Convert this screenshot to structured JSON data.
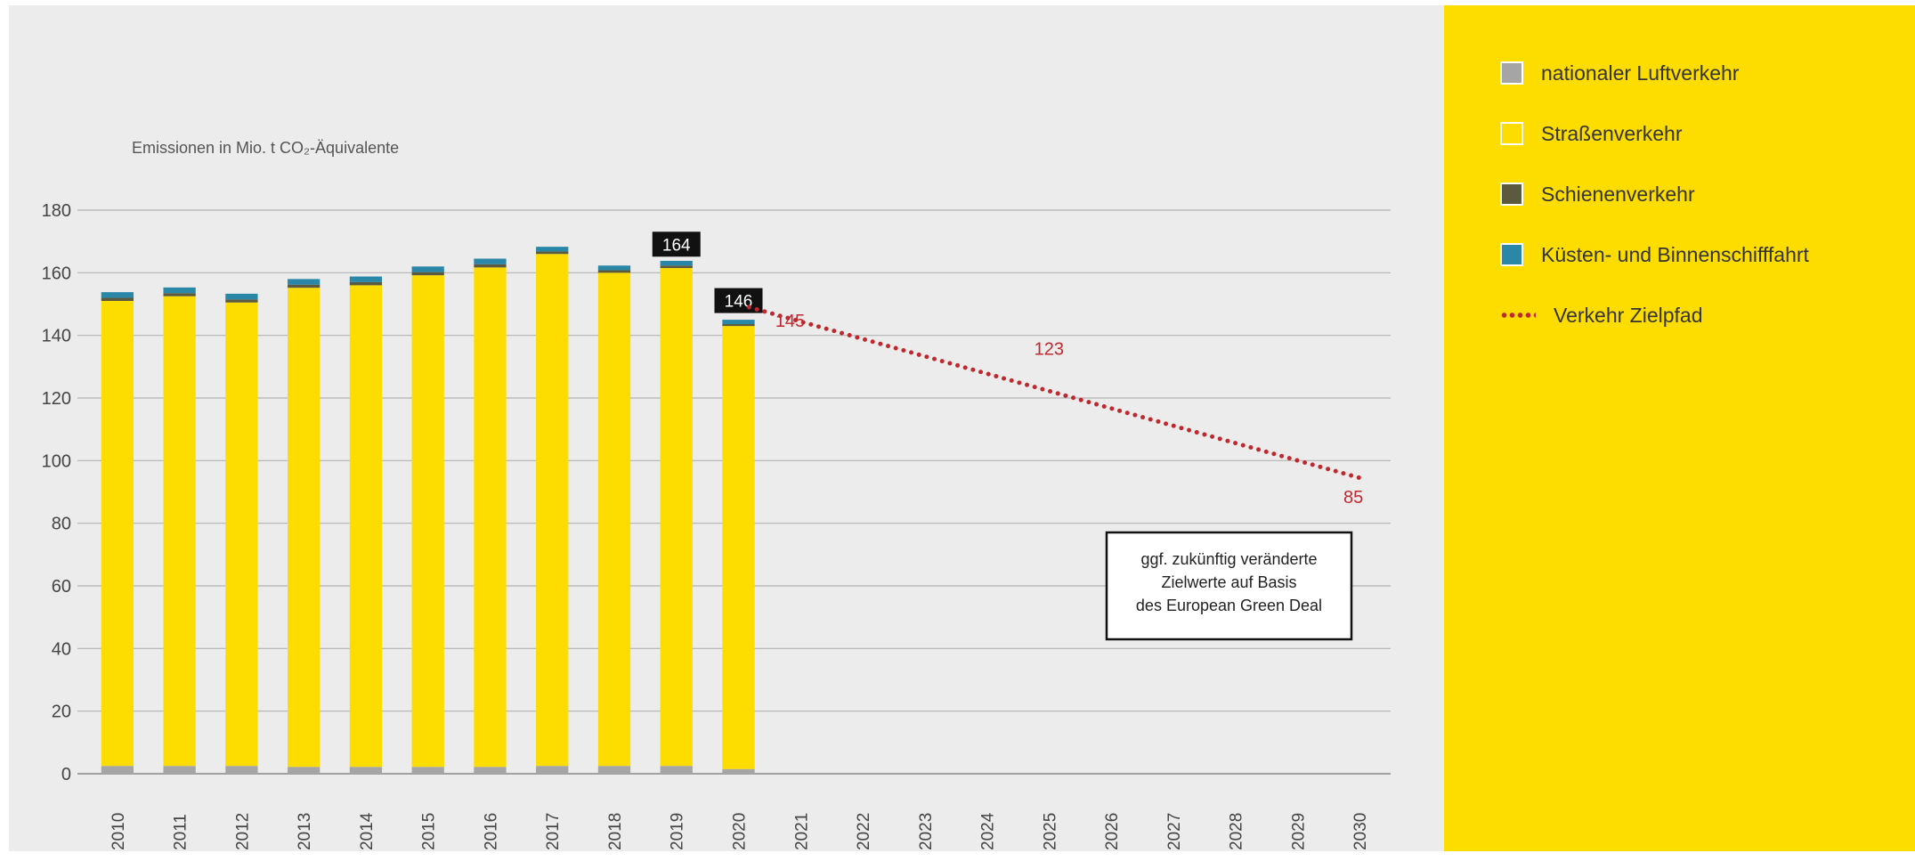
{
  "chart_data": {
    "type": "bar",
    "stacked": true,
    "ylabel": "Emissionen in Mio. t CO₂-Äquivalente",
    "ylim": [
      0,
      180
    ],
    "yticks": [
      0,
      20,
      40,
      60,
      80,
      100,
      120,
      140,
      160,
      180
    ],
    "categories": [
      "2010",
      "2011",
      "2012",
      "2013",
      "2014",
      "2015",
      "2016",
      "2017",
      "2018",
      "2019",
      "2020",
      "2021",
      "2022",
      "2023",
      "2024",
      "2025",
      "2026",
      "2027",
      "2028",
      "2029",
      "2030"
    ],
    "series": [
      {
        "name": "nationaler Luftverkehr",
        "color": "#a5a5a5",
        "values": [
          2.5,
          2.5,
          2.5,
          2.2,
          2.2,
          2.2,
          2.2,
          2.5,
          2.5,
          2.5,
          1.5,
          null,
          null,
          null,
          null,
          null,
          null,
          null,
          null,
          null,
          null
        ]
      },
      {
        "name": "Straßenverkehr",
        "color": "#fddc00",
        "values": [
          148.5,
          150,
          148,
          153,
          153.8,
          157,
          159.5,
          163.5,
          157.5,
          159,
          141.5,
          null,
          null,
          null,
          null,
          null,
          null,
          null,
          null,
          null,
          null
        ]
      },
      {
        "name": "Schienenverkehr",
        "color": "#5b5a3e",
        "values": [
          1,
          1,
          1,
          1,
          1,
          1,
          1,
          0.8,
          0.8,
          0.8,
          0.6,
          null,
          null,
          null,
          null,
          null,
          null,
          null,
          null,
          null,
          null
        ]
      },
      {
        "name": "Küsten- und Binnenschifffahrt",
        "color": "#2b87a8",
        "values": [
          1.8,
          1.8,
          1.8,
          1.8,
          1.8,
          1.8,
          1.8,
          1.5,
          1.5,
          1.5,
          1.4,
          null,
          null,
          null,
          null,
          null,
          null,
          null,
          null,
          null,
          null
        ]
      }
    ],
    "target_path": {
      "name": "Verkehr Zielpfad",
      "color": "#c0282e",
      "x": [
        "2020",
        "2030"
      ],
      "y": [
        149,
        94.5
      ]
    },
    "bar_labels": [
      {
        "category": "2019",
        "text": "164",
        "value": 164
      },
      {
        "category": "2020",
        "text": "146",
        "value": 146
      }
    ],
    "target_labels": [
      {
        "text": "145",
        "category": "2020",
        "value": 145
      },
      {
        "text": "123",
        "category": "2025",
        "value": 123
      },
      {
        "text": "85",
        "category": "2030",
        "value": 85
      }
    ],
    "annotation": [
      "ggf. zukünftig veränderte",
      "Zielwerte auf Basis",
      "des European Green Deal"
    ],
    "grid": true,
    "legend_position": "right"
  }
}
